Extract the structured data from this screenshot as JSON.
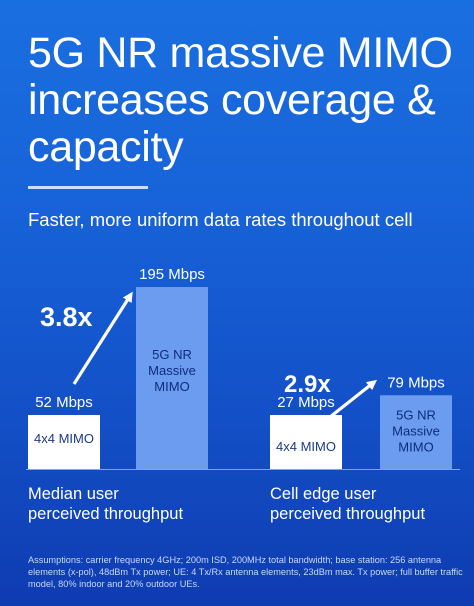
{
  "title": "5G NR massive MIMO increases coverage & capacity",
  "subtitle": "Faster, more uniform data rates throughout cell",
  "captions": {
    "left": [
      "Median user",
      "perceived throughput"
    ],
    "right": [
      "Cell edge user",
      "perceived throughput"
    ]
  },
  "footnote": "Assumptions: carrier frequency 4GHz; 200m ISD, 200MHz total bandwidth; base station: 256 antenna elements (x-pol), 48dBm Tx power; UE: 4 Tx/Rx antenna elements, 23dBm max. Tx power; full buffer traffic model, 80% indoor and 20% outdoor UEs.",
  "colors": {
    "background": "#1762d8",
    "bar_4x4": "#ffffff",
    "bar_massive": "#6b9cf0",
    "bar_massive_text": "#0d2d7a",
    "bar_4x4_text": "#1a3a8a"
  },
  "chart_data": {
    "type": "bar",
    "groups": [
      {
        "name": "Median user perceived throughput",
        "multiplier": "3.8x",
        "bars": [
          {
            "series": "4x4 MIMO",
            "label": "4x4 MIMO",
            "value": 52,
            "value_label": "52 Mbps"
          },
          {
            "series": "5G NR Massive MIMO",
            "label": "5G NR Massive MIMO",
            "value": 195,
            "value_label": "195 Mbps"
          }
        ]
      },
      {
        "name": "Cell edge user perceived throughput",
        "multiplier": "2.9x",
        "bars": [
          {
            "series": "4x4 MIMO",
            "label": "4x4 MIMO",
            "value": 27,
            "value_label": "27 Mbps"
          },
          {
            "series": "5G NR Massive MIMO",
            "label": "5G NR Massive MIMO",
            "value": 79,
            "value_label": "79 Mbps"
          }
        ]
      }
    ],
    "unit": "Mbps",
    "xlabel": "",
    "ylabel": ""
  }
}
